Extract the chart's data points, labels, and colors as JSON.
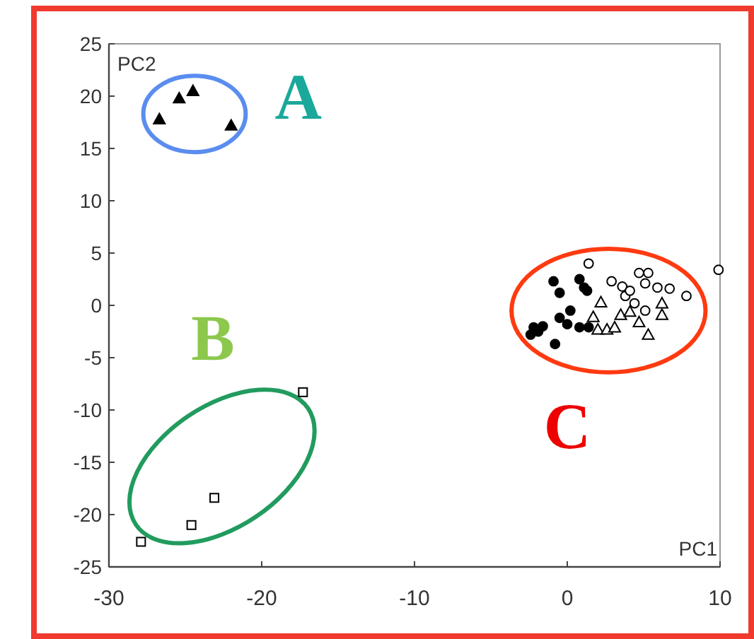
{
  "chart_data": {
    "type": "scatter",
    "xlabel": "PC1",
    "ylabel": "PC2",
    "xlim": [
      -30,
      10
    ],
    "ylim": [
      -25,
      25
    ],
    "xticks": [
      -30,
      -20,
      -10,
      0,
      10
    ],
    "yticks": [
      -25,
      -20,
      -15,
      -10,
      -5,
      0,
      5,
      10,
      15,
      20,
      25
    ],
    "grid": false,
    "series": [
      {
        "color": "#000000",
        "marker": "triangle",
        "x": [
          -26.7,
          -25.4,
          -24.5,
          -22.0
        ],
        "values": [
          17.8,
          19.8,
          20.5,
          17.2
        ]
      },
      {
        "color": "#ffffff",
        "marker": "square",
        "x": [
          -27.9,
          -24.6,
          -23.1,
          -17.3
        ],
        "values": [
          -22.6,
          -21.0,
          -18.4,
          -8.3
        ]
      },
      {
        "color": "#000000",
        "marker": "circle",
        "x": [
          -0.9,
          -0.5,
          0.8,
          1.1,
          1.3,
          0.2,
          -0.5,
          0,
          -2.2,
          -1.9,
          -2.4,
          -1.6,
          -0.8,
          0.8,
          1.4
        ],
        "values": [
          2.3,
          1.2,
          2.5,
          1.7,
          1.4,
          -0.5,
          -1.2,
          -1.8,
          -2.1,
          -2.5,
          -2.8,
          -2.0,
          -3.7,
          -2.1,
          -2.1
        ]
      },
      {
        "color": "#ffffff",
        "marker": "triangle",
        "x": [
          2.2,
          1.7,
          2.0,
          2.6,
          3.1,
          3.5,
          4.1,
          4.7,
          5.3,
          6.2,
          6.2
        ],
        "values": [
          0.3,
          -1.1,
          -2.3,
          -2.3,
          -2.1,
          -0.9,
          -0.6,
          -1.6,
          -2.8,
          0.2,
          -0.9
        ]
      },
      {
        "color": "#ffffff",
        "marker": "circle",
        "x": [
          1.4,
          2.9,
          3.6,
          3.8,
          4.7,
          5.3,
          5.1,
          5.9,
          6.7,
          7.8,
          4.4,
          5.1,
          4.1,
          9.9
        ],
        "values": [
          4.0,
          2.3,
          1.8,
          0.9,
          3.1,
          3.1,
          2.1,
          1.7,
          1.6,
          0.9,
          0.2,
          -0.5,
          1.4,
          3.4
        ]
      }
    ],
    "annotations": [
      "A",
      "B",
      "C"
    ]
  }
}
